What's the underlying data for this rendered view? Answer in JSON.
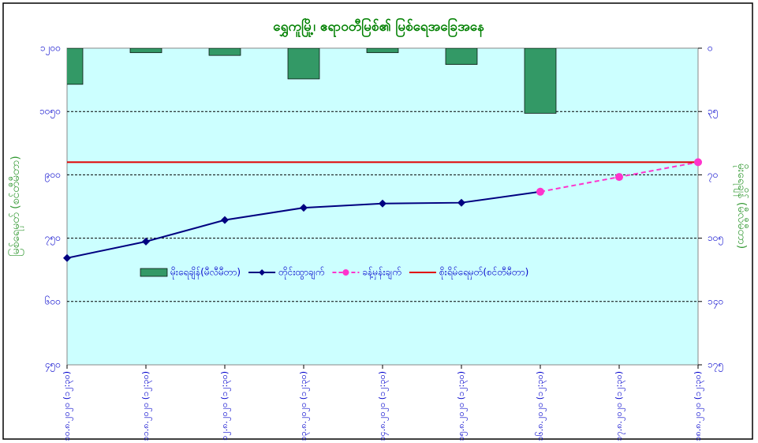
{
  "chart_data": {
    "type": "combo",
    "title": "ရွှေကူမြို့၊ ဧရာဝတီမြစ်၏ မြစ်ရေအခြေအနေ",
    "y_label": "မြစ်ရေမှတ် (စင်တီမီတာ)",
    "y2_label": "မိုးရေချိန် (မီလီမီတာ)",
    "categories": [
      "၁၀.၈.၂၀၂၀ (၁၂:၃၀)",
      "၁၁.၈.၂၀၂၀ (၁၂:၃၀)",
      "၁၂.၈.၂၀၂၀ (၁၂:၃၀)",
      "၁၃.၈.၂၀၂၀ (၁၂:၃၀)",
      "၁၄.၈.၂၀၂၀ (၁၂:၃၀)",
      "၁၅.၈.၂၀၂၀ (၁၂:၃၀)",
      "၁၆.၈.၂၀၂၀ (၁၂:၃၀)",
      "၁၇.၈.၂၀၂၀ (၁၂:၃၀)",
      "၁၈.၈.၂၀၂၀ (၁၂:၃၀)"
    ],
    "series": [
      {
        "name": "မိုးရေချိန်(မီလီမီတာ)",
        "kind": "bar",
        "axis": "y2",
        "color": "#339966",
        "values": [
          20,
          2.5,
          4,
          17,
          2.5,
          9,
          36,
          null,
          null
        ]
      },
      {
        "name": "တိုင်းထွာချက်",
        "kind": "line",
        "color": "#000080",
        "values": [
          703,
          742,
          793,
          822,
          832,
          834,
          860,
          null,
          null
        ]
      },
      {
        "name": "ခန့်မှန်းချက်",
        "kind": "dashed",
        "color": "#ff33cc",
        "values": [
          null,
          null,
          null,
          null,
          null,
          null,
          860,
          895,
          930
        ]
      },
      {
        "name": "စိုးရိမ်ရေမှတ်(စင်တီမီတာ)",
        "kind": "plain",
        "color": "#e00000",
        "values": [
          930,
          930,
          930,
          930,
          930,
          930,
          930,
          930,
          930
        ]
      }
    ],
    "ylim": [
      450,
      1200
    ],
    "yticks": [
      {
        "value": 450,
        "label": "၄၅၀"
      },
      {
        "value": 600,
        "label": "၆၀၀"
      },
      {
        "value": 750,
        "label": "၇၅၀"
      },
      {
        "value": 900,
        "label": "၉၀၀"
      },
      {
        "value": 1050,
        "label": "၁၀၅၀"
      },
      {
        "value": 1200,
        "label": "၁၂၀၀"
      }
    ],
    "y2lim": [
      175,
      0
    ],
    "y2ticks": [
      {
        "value": 0,
        "label": "၀"
      },
      {
        "value": 35,
        "label": "၃၅"
      },
      {
        "value": 70,
        "label": "၇၀"
      },
      {
        "value": 105,
        "label": "၁၀၅"
      },
      {
        "value": 140,
        "label": "၁၄၀"
      },
      {
        "value": 175,
        "label": "၁၇၅"
      }
    ],
    "grid": true
  }
}
